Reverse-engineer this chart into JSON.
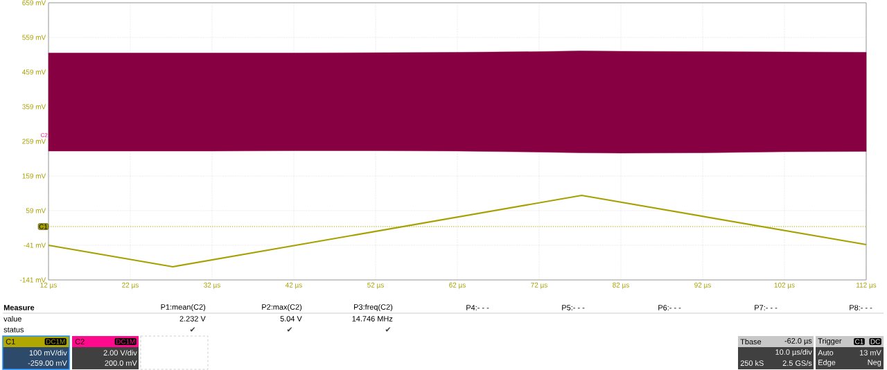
{
  "chart_data": {
    "type": "line",
    "xticks": [
      {
        "value": 12,
        "label": "12 µs"
      },
      {
        "value": 22,
        "label": "22 µs"
      },
      {
        "value": 32,
        "label": "32 µs"
      },
      {
        "value": 42,
        "label": "42 µs"
      },
      {
        "value": 52,
        "label": "52 µs"
      },
      {
        "value": 62,
        "label": "62 µs"
      },
      {
        "value": 72,
        "label": "72 µs"
      },
      {
        "value": 82,
        "label": "82 µs"
      },
      {
        "value": 92,
        "label": "92 µs"
      },
      {
        "value": 102,
        "label": "102 µs"
      },
      {
        "value": 112,
        "label": "112 µs"
      }
    ],
    "yticks": [
      {
        "value": -141,
        "label": "-141 mV"
      },
      {
        "value": -41,
        "label": "-41 mV"
      },
      {
        "value": 59,
        "label": "59 mV"
      },
      {
        "value": 159,
        "label": "159 mV"
      },
      {
        "value": 259,
        "label": "259 mV"
      },
      {
        "value": 359,
        "label": "359 mV"
      },
      {
        "value": 459,
        "label": "459 mV"
      },
      {
        "value": 559,
        "label": "559 mV"
      },
      {
        "value": 659,
        "label": "659 mV"
      }
    ],
    "xlim": [
      12,
      112
    ],
    "ylim": [
      -141,
      659
    ],
    "grid": true,
    "marker": "none",
    "series": [
      {
        "color": "#870042",
        "x": [
          12,
          22,
          32,
          42,
          52,
          62,
          72,
          77,
          82,
          92,
          102,
          112
        ],
        "values": [
          null,
          null,
          null,
          null,
          null,
          null,
          null,
          null,
          null,
          null,
          null,
          null
        ],
        "lower": [
          231,
          231,
          231,
          232,
          232,
          231,
          228,
          226,
          225,
          226,
          229,
          230
        ],
        "upper": [
          514,
          514,
          514,
          514,
          515,
          516,
          518,
          520,
          519,
          518,
          517,
          516
        ]
      },
      {
        "color": "#a8a000",
        "x": [
          12,
          27.2,
          77.2,
          112
        ],
        "values": [
          -41,
          -103,
          103,
          -39
        ],
        "line_style": "solid"
      }
    ],
    "ref_lines": [
      {
        "axis": "y",
        "value": 13,
        "label": "C1",
        "color": "#a8a000",
        "line_style": "dotted"
      }
    ],
    "annotations": [
      "Measure",
      "P1:mean(C2)",
      "P2:max(C2)",
      "P3:freq(C2)",
      "P4:- - -",
      "P5:- - -",
      "P6:- - -",
      "P7:- - -",
      "P8:- - -",
      "value",
      "2.232 V",
      "5.04 V",
      "14.746 MHz",
      "status",
      "✔",
      "✔",
      "✔",
      "C1",
      "DC1M",
      "100 mV/div",
      "-259.00 mV",
      "C2",
      "DC1M",
      "2.00 V/div",
      "200.0 mV",
      "Tbase",
      "-62.0 µs",
      "10.0 µs/div",
      "250 kS",
      "2.5 GS/s",
      "Trigger",
      "C1",
      "DC",
      "Auto",
      "13 mV",
      "Edge",
      "Neg",
      {
        "text": "C2",
        "x": 12,
        "y": 269
      }
    ]
  }
}
